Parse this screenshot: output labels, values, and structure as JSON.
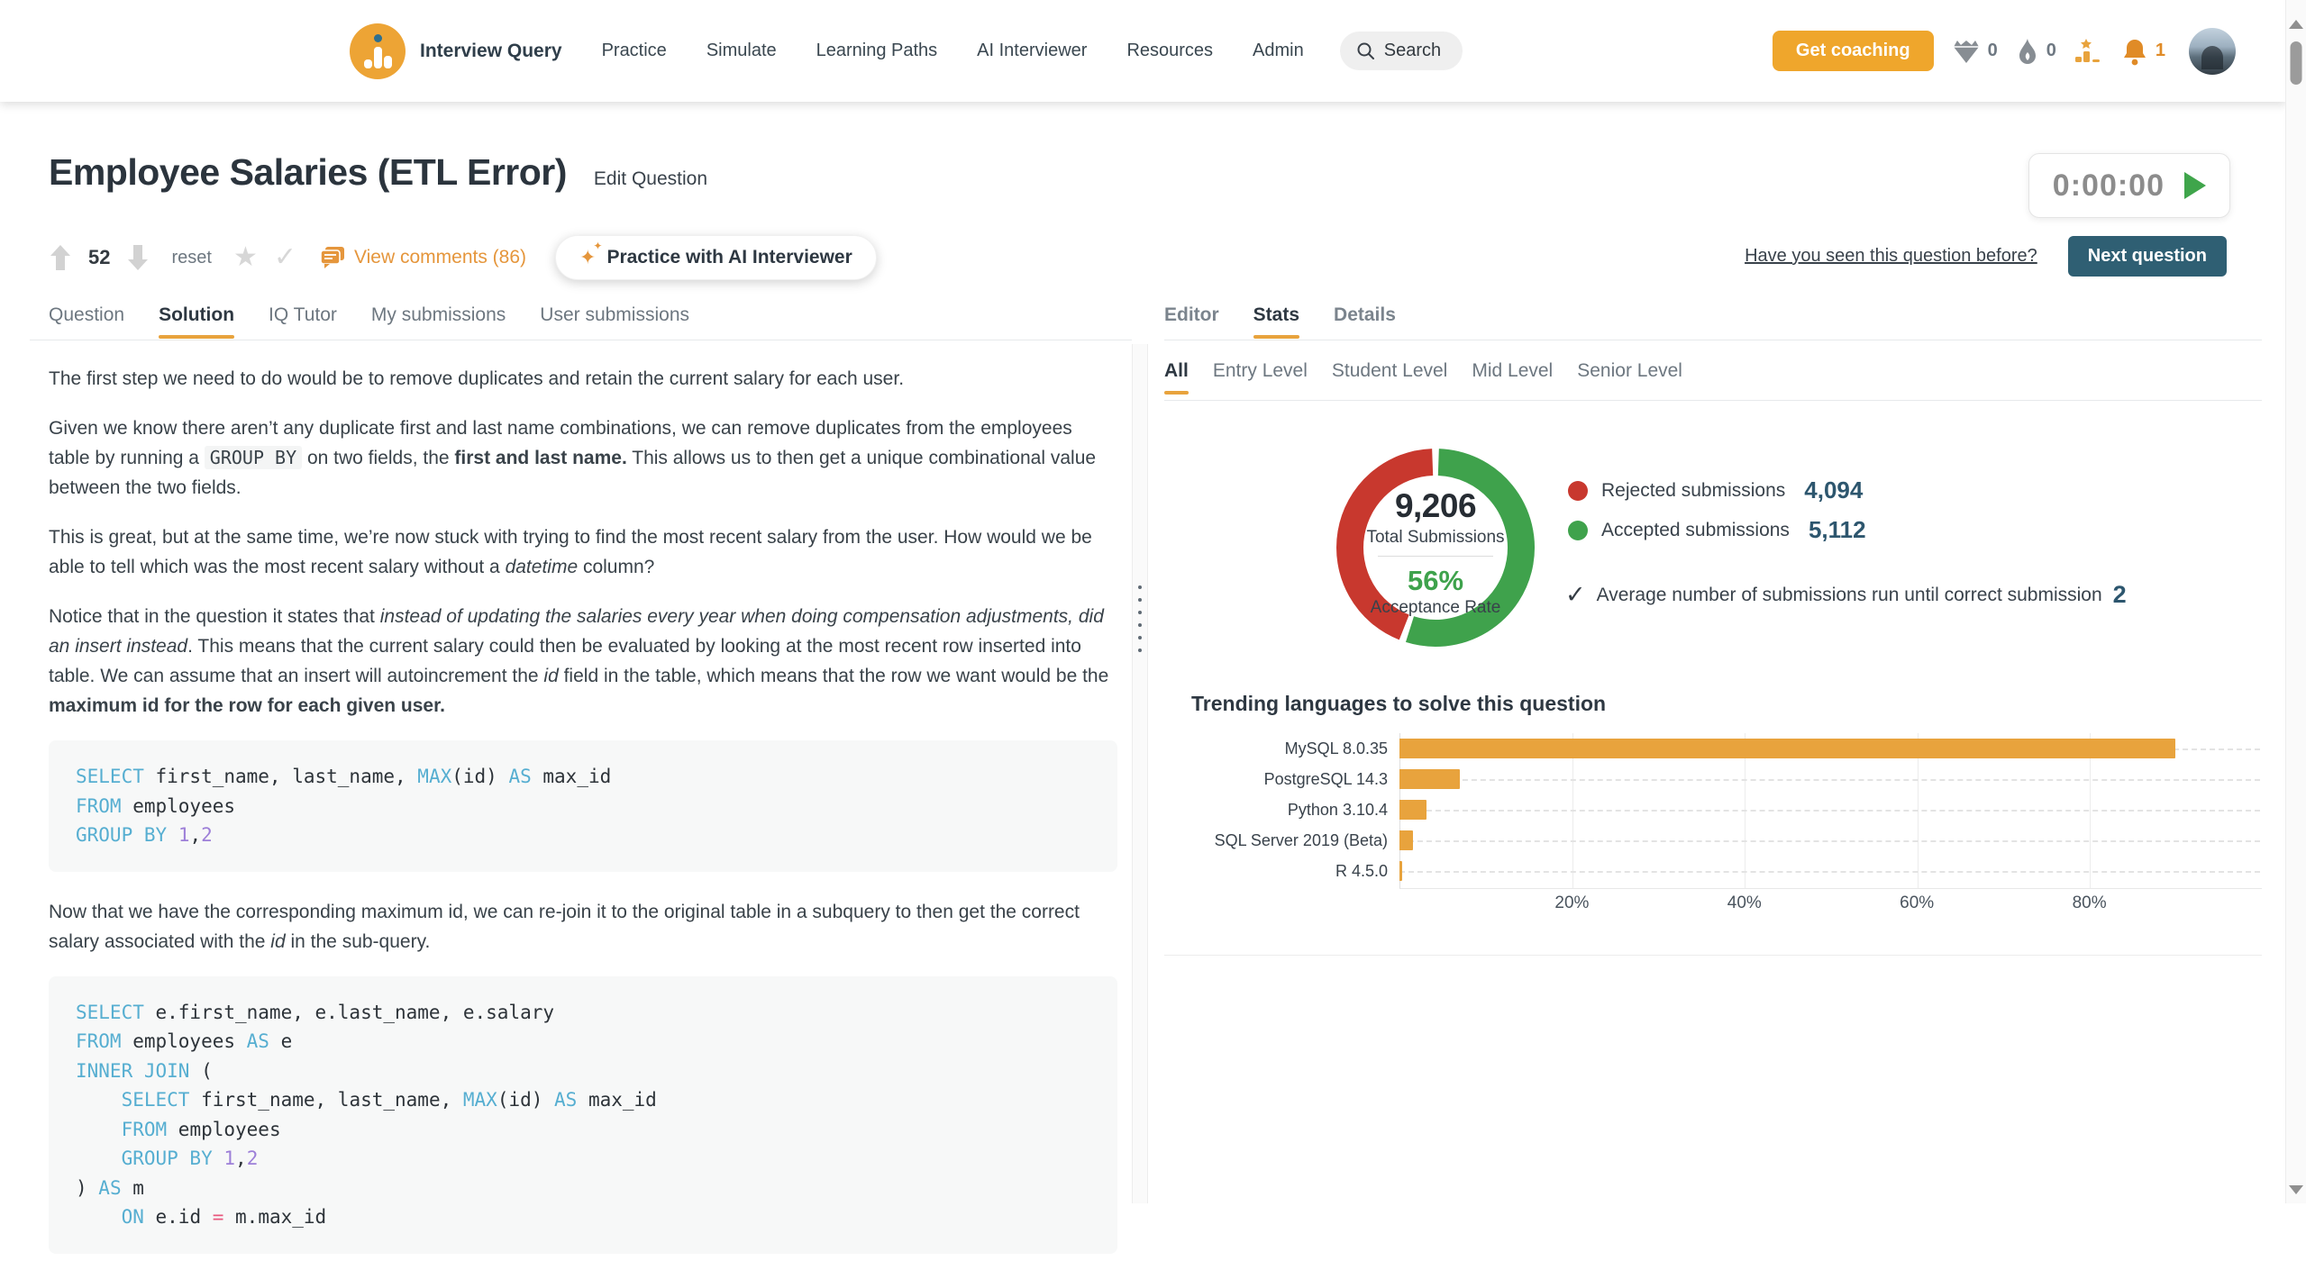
{
  "nav": {
    "brand": "Interview Query",
    "links": [
      "Practice",
      "Simulate",
      "Learning Paths",
      "AI Interviewer",
      "Resources",
      "Admin"
    ],
    "search_label": "Search",
    "coaching_button": "Get coaching",
    "gem_count": "0",
    "streak_count": "0",
    "notification_count": "1"
  },
  "header": {
    "title": "Employee Salaries (ETL Error)",
    "edit_link": "Edit Question",
    "timer": "0:00:00",
    "upvotes": "52",
    "reset_label": "reset",
    "comments_label": "View comments (86)",
    "ai_button": "Practice with AI Interviewer",
    "seen_link": "Have you seen this question before?",
    "next_button": "Next question"
  },
  "icons": {
    "star": "★",
    "check": "✓",
    "sparkle": "✦",
    "avg_check": "✓"
  },
  "left_tabs": [
    {
      "label": "Question",
      "active": false
    },
    {
      "label": "Solution",
      "active": true
    },
    {
      "label": "IQ Tutor",
      "active": false
    },
    {
      "label": "My submissions",
      "active": false
    },
    {
      "label": "User submissions",
      "active": false
    }
  ],
  "right_tabs": [
    {
      "label": "Editor",
      "active": false
    },
    {
      "label": "Stats",
      "active": true
    },
    {
      "label": "Details",
      "active": false
    }
  ],
  "stats_tabs": [
    {
      "label": "All",
      "active": true
    },
    {
      "label": "Entry Level",
      "active": false
    },
    {
      "label": "Student Level",
      "active": false
    },
    {
      "label": "Mid Level",
      "active": false
    },
    {
      "label": "Senior Level",
      "active": false
    }
  ],
  "solution": {
    "blocks": [
      {
        "type": "p",
        "runs": [
          {
            "t": "The first step we need to do would be to remove duplicates and retain the current salary for each user."
          }
        ]
      },
      {
        "type": "p",
        "runs": [
          {
            "t": "Given we know there aren’t any duplicate first and last name combinations, we can remove duplicates from the employees table by running a "
          },
          {
            "t": "GROUP BY",
            "s": "c"
          },
          {
            "t": " on two fields, the "
          },
          {
            "t": "first and last name.",
            "s": "b"
          },
          {
            "t": " This allows us to then get a unique combinational value between the two fields."
          }
        ]
      },
      {
        "type": "p",
        "runs": [
          {
            "t": "This is great, but at the same time, we’re now stuck with trying to find the most recent salary from the user. How would we be able to tell which was the most recent salary without a "
          },
          {
            "t": "datetime",
            "s": "i"
          },
          {
            "t": " column?"
          }
        ]
      },
      {
        "type": "p",
        "runs": [
          {
            "t": "Notice that in the question it states that "
          },
          {
            "t": "instead of updating the salaries every year when doing compensation adjustments, did an insert instead",
            "s": "i"
          },
          {
            "t": ". This means that the current salary could then be evaluated by looking at the most recent row inserted into table. We can assume that an insert will autoincrement the "
          },
          {
            "t": "id",
            "s": "i"
          },
          {
            "t": " field in the table, which means that the row we want would be the "
          },
          {
            "t": "maximum id for the row for each given user.",
            "s": "b"
          }
        ]
      },
      {
        "type": "code",
        "lines": [
          [
            {
              "t": "SELECT",
              "c": "k"
            },
            {
              "t": " first_name, last_name, "
            },
            {
              "t": "MAX",
              "c": "k"
            },
            {
              "t": "(id) "
            },
            {
              "t": "AS",
              "c": "k"
            },
            {
              "t": " max_id"
            }
          ],
          [
            {
              "t": "FROM",
              "c": "k"
            },
            {
              "t": " employees"
            }
          ],
          [
            {
              "t": "GROUP BY",
              "c": "k"
            },
            {
              "t": " "
            },
            {
              "t": "1",
              "c": "n"
            },
            {
              "t": ","
            },
            {
              "t": "2",
              "c": "n"
            }
          ]
        ]
      },
      {
        "type": "p",
        "runs": [
          {
            "t": "Now that we have the corresponding maximum id, we can re-join it to the original table in a subquery to then get the correct salary associated with the "
          },
          {
            "t": "id",
            "s": "i"
          },
          {
            "t": " in the sub-query."
          }
        ]
      },
      {
        "type": "code",
        "lines": [
          [
            {
              "t": "SELECT",
              "c": "k"
            },
            {
              "t": " e.first_name, e.last_name, e.salary"
            }
          ],
          [
            {
              "t": "FROM",
              "c": "k"
            },
            {
              "t": " employees "
            },
            {
              "t": "AS",
              "c": "k"
            },
            {
              "t": " e"
            }
          ],
          [
            {
              "t": "INNER JOIN",
              "c": "k"
            },
            {
              "t": " ("
            }
          ],
          [
            {
              "t": "    "
            },
            {
              "t": "SELECT",
              "c": "k"
            },
            {
              "t": " first_name, last_name, "
            },
            {
              "t": "MAX",
              "c": "k"
            },
            {
              "t": "(id) "
            },
            {
              "t": "AS",
              "c": "k"
            },
            {
              "t": " max_id"
            }
          ],
          [
            {
              "t": "    "
            },
            {
              "t": "FROM",
              "c": "k"
            },
            {
              "t": " employees"
            }
          ],
          [
            {
              "t": "    "
            },
            {
              "t": "GROUP BY",
              "c": "k"
            },
            {
              "t": " "
            },
            {
              "t": "1",
              "c": "n"
            },
            {
              "t": ","
            },
            {
              "t": "2",
              "c": "n"
            }
          ],
          [
            {
              "t": ") "
            },
            {
              "t": "AS",
              "c": "k"
            },
            {
              "t": " m"
            }
          ],
          [
            {
              "t": "    "
            },
            {
              "t": "ON",
              "c": "k"
            },
            {
              "t": " e.id "
            },
            {
              "t": "=",
              "c": "o"
            },
            {
              "t": " m.max_id"
            }
          ]
        ]
      }
    ]
  },
  "stats": {
    "total": "9,206",
    "total_label": "Total Submissions",
    "rate": "56%",
    "rate_label": "Acceptance Rate",
    "rejected_label": "Rejected submissions",
    "rejected_value": "4,094",
    "accepted_label": "Accepted submissions",
    "accepted_value": "5,112",
    "avg_label": "Average number of submissions run until correct submission",
    "avg_value": "2"
  },
  "chart_data": [
    {
      "type": "pie",
      "subtype": "donut",
      "labels": [
        "Rejected submissions",
        "Accepted submissions"
      ],
      "values": [
        4094,
        5112
      ],
      "colors": [
        "#c8382e",
        "#3fa24c"
      ],
      "center_total": "9,206",
      "center_rate": "56%"
    },
    {
      "type": "bar",
      "orientation": "horizontal",
      "title": "Trending languages to solve this question",
      "categories": [
        "MySQL 8.0.35",
        "PostgreSQL 14.3",
        "Python 3.10.4",
        "SQL Server 2019 (Beta)",
        "R 4.5.0"
      ],
      "values": [
        90,
        7,
        3.1,
        1.6,
        0.3
      ],
      "unit": "%",
      "xticks": [
        "20%",
        "40%",
        "60%",
        "80%"
      ],
      "xlim": [
        0,
        100
      ],
      "bar_color": "#e8a33d",
      "grid": true
    }
  ],
  "colors": {
    "accent_orange": "#e8a33d",
    "button_orange": "#efa62c",
    "teal_button": "#2f5f73",
    "rejected_red": "#c8382e",
    "accepted_green": "#3fa24c",
    "value_navy": "#2d566e"
  }
}
